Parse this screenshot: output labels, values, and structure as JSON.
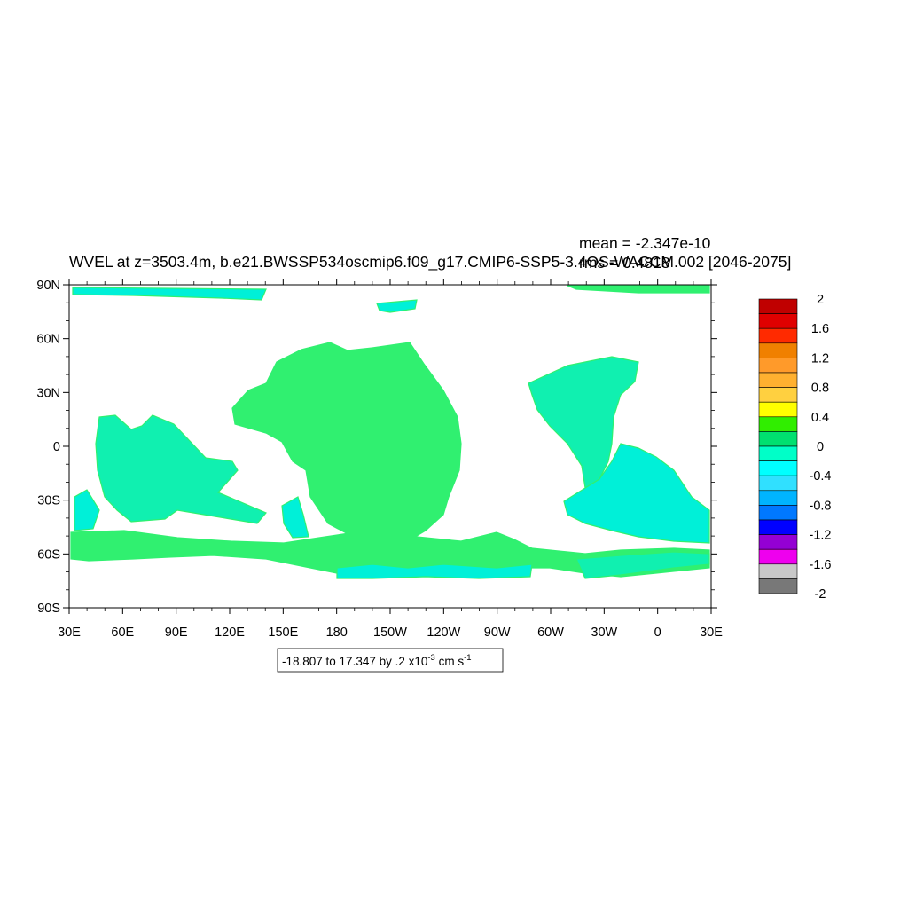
{
  "title": "WVEL at z=3503.4m, b.e21.BWSSP534oscmip6.f09_g17.CMIP6-SSP5-3.4OS-WACCM.002 [2046-2075]",
  "stats": {
    "mean_label": "mean = -2.347e-10",
    "rms_label": "rms = 0.4818"
  },
  "axes": {
    "lat_labels": [
      "90N",
      "60N",
      "30N",
      "0",
      "30S",
      "60S",
      "90S"
    ],
    "lon_labels": [
      "30E",
      "60E",
      "90E",
      "120E",
      "150E",
      "180",
      "150W",
      "120W",
      "90W",
      "60W",
      "30W",
      "0",
      "30E"
    ],
    "lat_range": [
      -90,
      90
    ],
    "lon_range": [
      30,
      390
    ]
  },
  "colorbar": {
    "labels": [
      "2",
      "1.6",
      "1.2",
      "0.8",
      "0.4",
      "0",
      "-0.4",
      "-0.8",
      "-1.2",
      "-1.6",
      "-2"
    ],
    "colors": [
      "#c00000",
      "#e00000",
      "#ff2a00",
      "#f08000",
      "#ff9a2a",
      "#ffb030",
      "#ffd040",
      "#ffff00",
      "#30ee00",
      "#00e070",
      "#00ffc8",
      "#00ffff",
      "#30e0ff",
      "#00b4ff",
      "#0078ff",
      "#0000ff",
      "#9400d3",
      "#ee00ee",
      "#c8c8c8",
      "#787878"
    ]
  },
  "info": {
    "range_prefix": "-18.807 to 17.347 by .2 x10",
    "exponent": "-3",
    "units_prefix": " cm s",
    "units_exp": "-1"
  },
  "map": {
    "ocean_colors": {
      "base": "#00f0d8",
      "band_a": "#30f070",
      "band_b": "#10f0b0"
    }
  }
}
